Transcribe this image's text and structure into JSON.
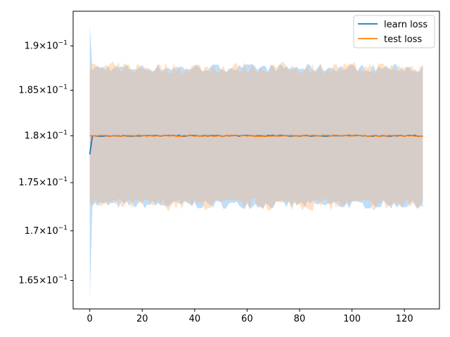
{
  "chart_data": {
    "type": "line",
    "title": "",
    "xlabel": "",
    "ylabel": "",
    "xlim": [
      -6.35,
      133.35
    ],
    "ylim": [
      0.162,
      1.0
    ],
    "yscale": "log",
    "grid": false,
    "legend_position": "top-right",
    "x_ticks": [
      0,
      20,
      40,
      60,
      80,
      100,
      120
    ],
    "x_tick_labels": [
      "0",
      "20",
      "40",
      "60",
      "80",
      "100",
      "120"
    ],
    "y_ticks": [
      0.165,
      0.17,
      0.175,
      0.18,
      0.185,
      0.19
    ],
    "y_tick_labels": [
      "1.65",
      "1.7",
      "1.75",
      "1.8",
      "1.85",
      "1.9"
    ],
    "y_tick_exponent": "−1",
    "x_range": [
      0,
      127
    ],
    "series": [
      {
        "name": "learn loss",
        "color": "#1f77b4",
        "band_color": "#a8d3f7",
        "mean_start": 0.178,
        "mean": 0.18,
        "band_start": [
          0.163,
          0.1924
        ],
        "band": [
          0.1727,
          0.1875
        ]
      },
      {
        "name": "test loss",
        "color": "#ff7f0e",
        "band_color": "#ffcf9e",
        "mean_start": 0.18,
        "mean": 0.18,
        "band_start": [
          0.1728,
          0.1874
        ],
        "band": [
          0.1727,
          0.1875
        ]
      }
    ],
    "overlap_color": "#d6ccc8"
  }
}
